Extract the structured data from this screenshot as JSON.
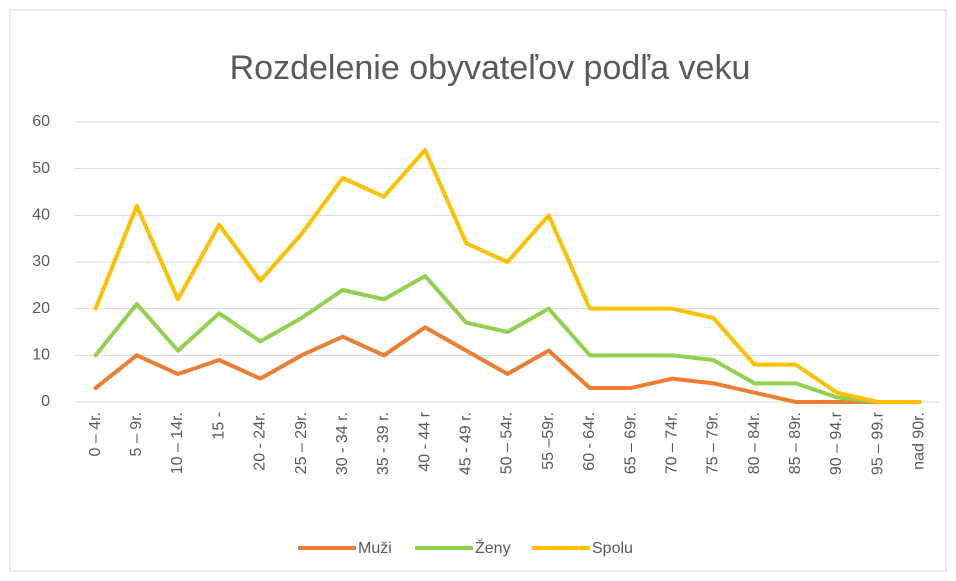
{
  "chart_data": {
    "type": "line",
    "title": "Rozdelenie obyvateľov podľa veku",
    "categories": [
      "0 – 4r.",
      "5 – 9r.",
      "10 – 14r.",
      "15 -",
      "20 - 24r.",
      "25 – 29r.",
      "30 - 34 r.",
      "35 - 39 r.",
      "40 - 44 r",
      "45 - 49 r.",
      "50 – 54r.",
      "55 –59r.",
      "60 - 64r.",
      "65 – 69r.",
      "70 – 74r.",
      "75 – 79r.",
      "80 – 84r.",
      "85 – 89r.",
      "90 – 94.r",
      "95 – 99.r",
      "nad 90r."
    ],
    "series": [
      {
        "name": "Muži",
        "color": "#ed7d31",
        "values": [
          3,
          10,
          6,
          9,
          5,
          10,
          14,
          10,
          16,
          11,
          6,
          11,
          3,
          3,
          5,
          4,
          2,
          0,
          0,
          0,
          0
        ]
      },
      {
        "name": "Ženy",
        "color": "#92d050",
        "values": [
          10,
          21,
          11,
          19,
          13,
          18,
          24,
          22,
          27,
          17,
          15,
          20,
          10,
          10,
          10,
          9,
          4,
          4,
          1,
          0,
          0
        ]
      },
      {
        "name": "Spolu",
        "color": "#ffc000",
        "values": [
          20,
          42,
          22,
          38,
          26,
          36,
          48,
          44,
          54,
          34,
          30,
          40,
          20,
          20,
          20,
          18,
          8,
          8,
          2,
          0,
          0
        ]
      }
    ],
    "ylim": [
      0,
      60
    ],
    "yticks": [
      0,
      10,
      20,
      30,
      40,
      50,
      60
    ],
    "grid": true,
    "legend": "bottom"
  }
}
